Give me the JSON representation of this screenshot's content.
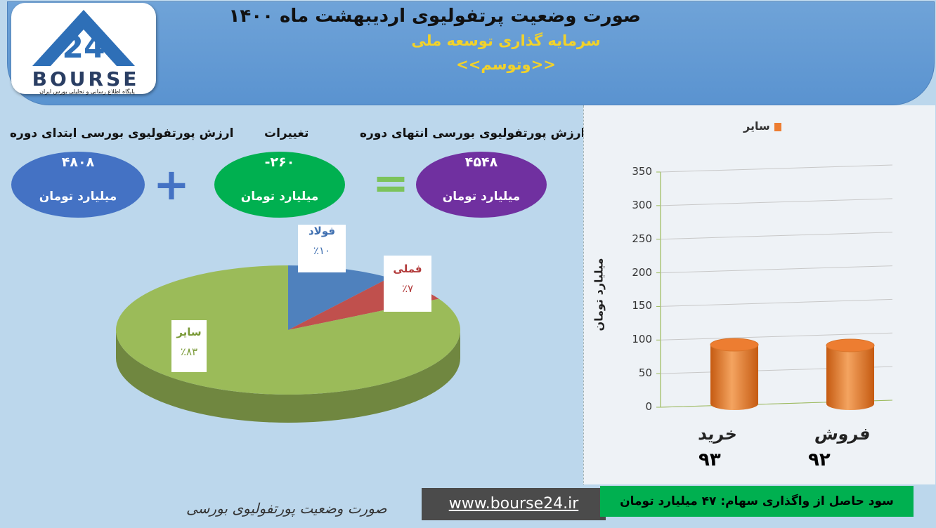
{
  "header": {
    "title": "صورت وضعیت پرتفولیوی اردیبهشت ماه ۱۴۰۰",
    "subtitle": "سرمایه گذاری توسعه ملی",
    "ticker": "<<وتوسم>>"
  },
  "logo": {
    "text": "BOURSE",
    "number": "24",
    "tagline": "پایگاه اطلاع رسانی و تحلیلی بورس ایران"
  },
  "summary": {
    "start_label": "ارزش پورتفولیوی بورسی ابتدای دوره",
    "start_value": "۴۸۰۸",
    "change_label": "تغییرات",
    "change_value": "-۲۶۰",
    "end_label": "ارزش پورتفولیوی بورسی انتهای دوره",
    "end_value": "۴۵۴۸",
    "unit": "میلیارد تومان",
    "colors": {
      "start": "#4472c4",
      "change": "#00b050",
      "end": "#7030a0"
    }
  },
  "footer": {
    "caption": "صورت وضعیت پورتفولیوی بورسی",
    "url": "www.bourse24.ir",
    "profit": "سود حاصل از واگذاری سهام: ۴۷ میلیارد تومان"
  },
  "chart_data": [
    {
      "type": "pie",
      "slices": [
        {
          "label": "فولاد",
          "pct_text": "٪۱۰",
          "value": 10,
          "color": "#4f81bd"
        },
        {
          "label": "فملی",
          "pct_text": "٪۷",
          "value": 7,
          "color": "#c0504d"
        },
        {
          "label": "سایر",
          "pct_text": "٪۸۳",
          "value": 83,
          "color": "#9bbb59"
        }
      ]
    },
    {
      "type": "bar",
      "legend": "سایر",
      "categories": [
        "خرید",
        "فروش"
      ],
      "value_labels": [
        "۹۳",
        "۹۲"
      ],
      "values": [
        93,
        92
      ],
      "ylabel": "میلیارد تومان",
      "ylim": [
        0,
        350
      ],
      "yticks": [
        0,
        50,
        100,
        150,
        200,
        250,
        300,
        350
      ],
      "color": "#ed7d31",
      "grid": true
    }
  ]
}
